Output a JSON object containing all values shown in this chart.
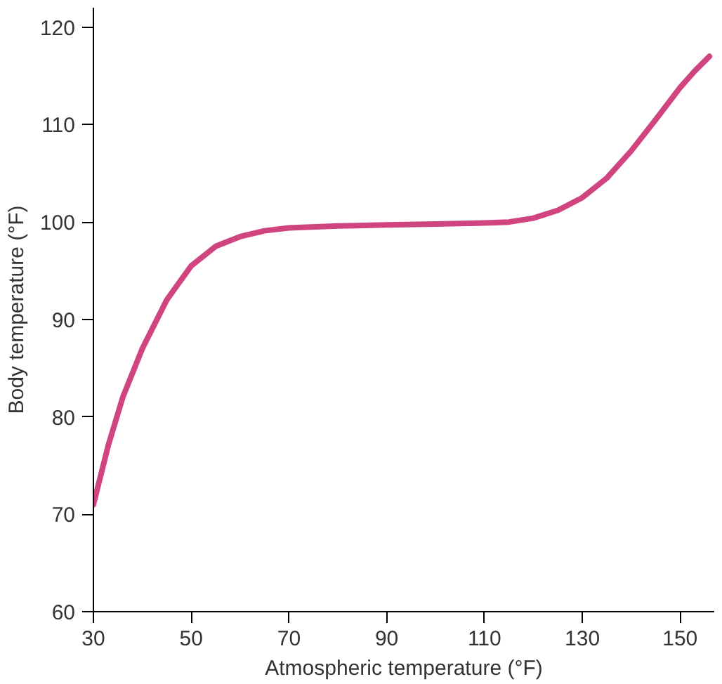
{
  "chart_data": {
    "type": "line",
    "xlabel": "Atmospheric temperature (°F)",
    "ylabel": "Body temperature (°F)",
    "x": [
      30,
      33,
      36,
      40,
      45,
      50,
      55,
      60,
      65,
      70,
      80,
      90,
      100,
      110,
      115,
      120,
      125,
      130,
      135,
      140,
      145,
      150,
      153,
      156
    ],
    "series": [
      {
        "color": "#d0457f",
        "values": [
          71,
          77,
          82,
          87,
          92,
          95.5,
          97.5,
          98.5,
          99.1,
          99.4,
          99.6,
          99.7,
          99.8,
          99.9,
          100,
          100.4,
          101.2,
          102.5,
          104.5,
          107.3,
          110.5,
          113.8,
          115.5,
          117
        ]
      }
    ],
    "xlim": [
      30,
      157
    ],
    "ylim": [
      60,
      122
    ],
    "xticks": [
      30,
      50,
      70,
      90,
      110,
      130,
      150
    ],
    "yticks": [
      60,
      70,
      80,
      90,
      100,
      110,
      120
    ],
    "grid": false,
    "marker": "none",
    "line_style": "solid"
  }
}
